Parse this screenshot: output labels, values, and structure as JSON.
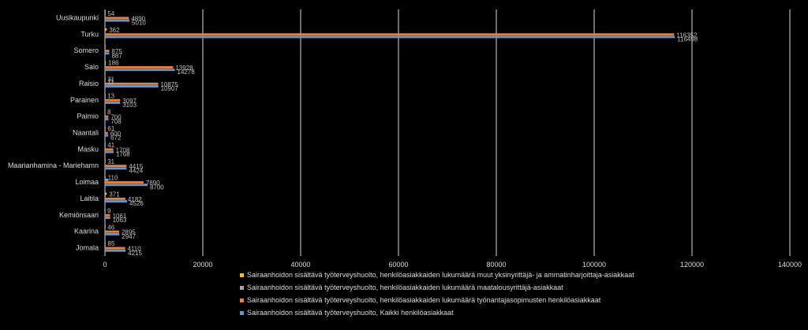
{
  "chart_data": {
    "type": "bar",
    "orientation": "horizontal",
    "categories": [
      "Uusikaupunki",
      "Turku",
      "Somero",
      "Salo",
      "Raisio",
      "Parainen",
      "Paimio",
      "Naantali",
      "Masku",
      "Maarianhamina - Mariehamn",
      "Loimaa",
      "Laitila",
      "Kemiönsaari",
      "Kaarina",
      "Jomala"
    ],
    "series": [
      {
        "name": "Sairaanhoidon sisältävä työterveyshuolto, henkilöasiakkaiden lukumäärä muut yksinyrittäjä- ja ammatinharjoittaja-asiakkaat",
        "color": "#ffc000",
        "values": [
          54,
          362,
          12,
          186,
          31,
          13,
          8,
          61,
          41,
          31,
          110,
          371,
          9,
          46,
          85
        ],
        "labels": [
          "54",
          "362",
          "",
          "186",
          "31",
          "13",
          "8",
          "61",
          "41",
          "31",
          "110",
          "371",
          "9",
          "46",
          "85"
        ]
      },
      {
        "name": "Sairaanhoidon sisältävä työterveyshuolto, henkilöasiakkaiden lukumäärä maatalousyrittäjä-asiakkaat",
        "color": "#a5a5a5",
        "values": [
          66,
          84,
          18,
          164,
          11,
          21,
          0,
          11,
          19,
          0,
          700,
          13,
          0,
          6,
          20
        ],
        "labels": [
          "",
          "",
          "",
          "",
          "11",
          "",
          "",
          "",
          "",
          "",
          "",
          "",
          "",
          "",
          ""
        ]
      },
      {
        "name": "Sairaanhoidon sisältävä työterveyshuolto, henkilöasiakkaiden lukumäärä työnantajasopimusten henkilöasiakkaat",
        "color": "#ed7d31",
        "values": [
          4890,
          116352,
          875,
          13928,
          10875,
          3097,
          700,
          600,
          1708,
          4415,
          7890,
          4182,
          1061,
          2895,
          4110
        ],
        "labels": [
          "4890",
          "116352",
          "875",
          "13928",
          "10875",
          "3097",
          "700",
          "600",
          "1708",
          "4415",
          "7890",
          "4182",
          "1061",
          "2895",
          "4110"
        ]
      },
      {
        "name": "Sairaanhoidon sisältävä työterveyshuolto, Kaikki henkilöasiakkaat",
        "color": "#5b9bd5",
        "values": [
          5010,
          116498,
          887,
          14278,
          10907,
          3103,
          708,
          672,
          1768,
          4424,
          8700,
          4526,
          1063,
          2947,
          4215
        ],
        "labels": [
          "5010",
          "116498",
          "887",
          "14278",
          "10907",
          "3103",
          "708",
          "672",
          "1768",
          "4424",
          "8700",
          "4526",
          "1063",
          "2947",
          "4215"
        ]
      }
    ],
    "xlim": [
      0,
      140000
    ],
    "xticks": [
      0,
      20000,
      40000,
      60000,
      80000,
      100000,
      120000,
      140000
    ],
    "xtick_labels": [
      "0",
      "20000",
      "40000",
      "60000",
      "80000",
      "100000",
      "120000",
      "140000"
    ],
    "grid": true,
    "legend_position": "bottom"
  },
  "colors": {
    "background": "#000000",
    "gridline": "#d9d9d9",
    "text": "#d9d9d9"
  }
}
